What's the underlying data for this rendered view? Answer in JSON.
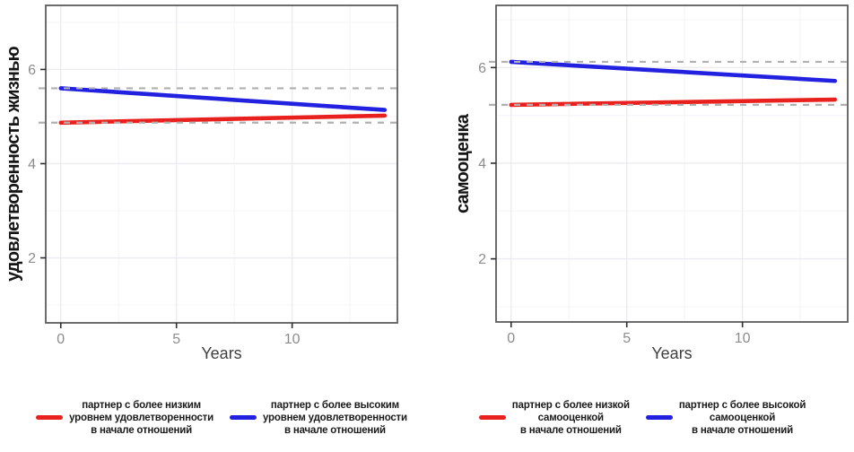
{
  "figure": {
    "background": "#ffffff",
    "panel_border_color": "#5c5c5c",
    "grid_major_color": "#ecebf1",
    "grid_minor_color": "#f6f5f9",
    "tick_color": "#2e2e2e",
    "tick_label_color": "#8c8c8c",
    "reference_line_color": "#b0b0b0"
  },
  "chart_data": [
    {
      "type": "line",
      "title": "",
      "ylabel": "удовлетворенность жизнью",
      "xlabel": "Years",
      "x_ticks": [
        0,
        5,
        10
      ],
      "y_ticks": [
        2,
        4,
        6
      ],
      "x_minor": [
        2.5,
        7.5,
        12.5
      ],
      "y_minor": [
        1,
        3,
        5,
        7
      ],
      "x_range": [
        -0.65,
        14.55
      ],
      "y_range": [
        0.62,
        7.36
      ],
      "grid": "on",
      "legend_position": "bottom",
      "series": [
        {
          "name": "партнер с более низким\nуровнем удовлетворенности\nв начале отношений",
          "color": "#e8211f",
          "x": [
            0,
            14
          ],
          "y": [
            4.87,
            5.02
          ]
        },
        {
          "name": "партнер с более высоким\nуровнем удовлетворенности\nв начале отношений",
          "color": "#2121df",
          "x": [
            0,
            14
          ],
          "y": [
            5.6,
            5.14
          ]
        }
      ],
      "ref_lines": [
        {
          "y": 5.6,
          "style": "dashed",
          "color": "#b0b0b0"
        },
        {
          "y": 4.87,
          "style": "dashed",
          "color": "#b0b0b0"
        }
      ]
    },
    {
      "type": "line",
      "title": "",
      "ylabel": "самооценка",
      "xlabel": "Years",
      "x_ticks": [
        0,
        5,
        10
      ],
      "y_ticks": [
        2,
        4,
        6
      ],
      "x_minor": [
        2.5,
        7.5,
        12.5
      ],
      "y_minor": [
        1,
        3,
        5,
        7
      ],
      "x_range": [
        -0.65,
        14.55
      ],
      "y_range": [
        0.68,
        7.3
      ],
      "grid": "on",
      "legend_position": "bottom",
      "series": [
        {
          "name": "партнер с более низкой\nсамооценкой\nв начале отношений",
          "color": "#e8211f",
          "x": [
            0,
            14
          ],
          "y": [
            5.22,
            5.33
          ]
        },
        {
          "name": "партнер с более высокой\nсамооценкой\nв начале отношений",
          "color": "#2121df",
          "x": [
            0,
            14
          ],
          "y": [
            6.12,
            5.72
          ]
        }
      ],
      "ref_lines": [
        {
          "y": 6.12,
          "style": "dashed",
          "color": "#b0b0b0"
        },
        {
          "y": 5.22,
          "style": "dashed",
          "color": "#b0b0b0"
        }
      ]
    }
  ]
}
